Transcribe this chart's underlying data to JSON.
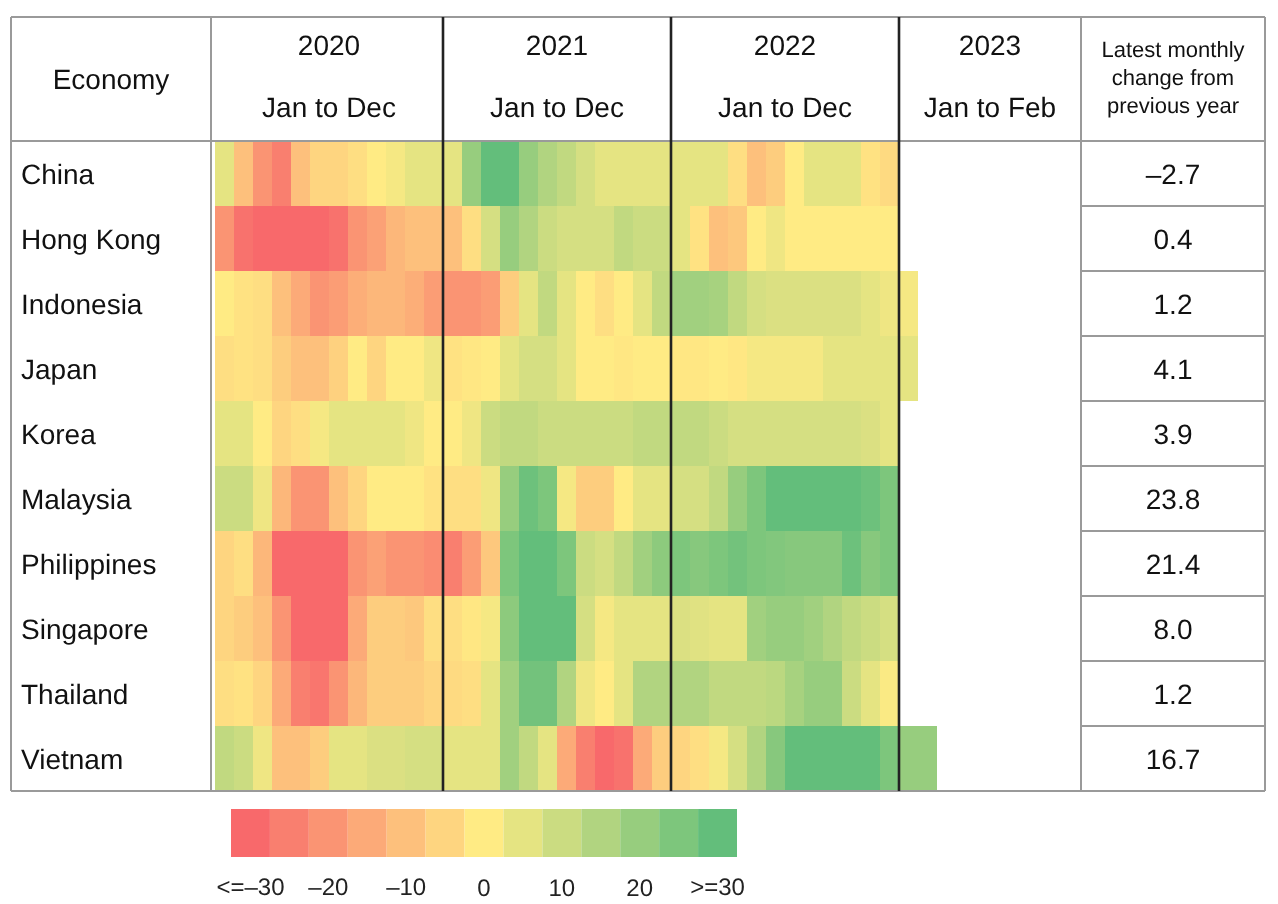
{
  "chart_data": {
    "type": "heatmap",
    "ylabel": "Economy",
    "annotations": [
      "2020",
      "Jan to Dec",
      "2021",
      "Jan to Dec",
      "2022",
      "Jan to Dec",
      "2023",
      "Jan to Feb",
      "Latest monthly change from previous year"
    ],
    "categories": [
      null,
      null,
      null,
      null,
      null,
      null,
      null,
      null,
      null,
      null,
      null,
      null,
      null,
      null,
      null,
      null,
      null,
      null,
      null,
      null,
      null,
      null,
      null,
      null,
      null,
      null,
      null,
      null,
      null,
      null,
      null,
      null,
      null,
      null,
      null,
      null,
      null,
      null
    ],
    "y_categories": [
      "China",
      "Hong Kong",
      "Indonesia",
      "Japan",
      "Korea",
      "Malaysia",
      "Philippines",
      "Singapore",
      "Thailand",
      "Vietnam"
    ],
    "y2_categories": [
      "–2.7",
      "0.4",
      "1.2",
      "4.1",
      "3.9",
      "23.8",
      "21.4",
      "8.0",
      "1.2",
      "16.7"
    ],
    "cells": [
      [
        5,
        -10,
        -20,
        -25,
        -10,
        -5,
        -5,
        -3,
        0,
        2,
        5,
        5,
        5,
        20,
        30,
        30,
        20,
        15,
        12,
        8,
        5,
        5,
        5,
        5,
        5,
        5,
        5,
        -3,
        -10,
        -7,
        0,
        5,
        5,
        5,
        -2,
        -4,
        null,
        null
      ],
      [
        -20,
        -28,
        -30,
        -30,
        -30,
        -30,
        -28,
        -20,
        -17,
        -12,
        -10,
        -10,
        -10,
        -3,
        8,
        20,
        15,
        10,
        8,
        8,
        8,
        12,
        10,
        10,
        5,
        -2,
        -10,
        -8,
        0,
        3,
        0,
        0,
        0,
        0,
        0,
        0,
        null,
        null
      ],
      [
        0,
        -2,
        -3,
        -10,
        -15,
        -20,
        -18,
        -14,
        -12,
        -12,
        -14,
        -18,
        -20,
        -20,
        -18,
        -7,
        5,
        12,
        5,
        0,
        -3,
        0,
        5,
        12,
        18,
        18,
        17,
        12,
        8,
        7,
        7,
        7,
        7,
        7,
        5,
        3,
        2,
        null
      ],
      [
        -3,
        -2,
        -3,
        -7,
        -10,
        -10,
        -6,
        0,
        -5,
        0,
        0,
        3,
        -2,
        -1,
        0,
        5,
        8,
        8,
        5,
        0,
        0,
        -1,
        0,
        0,
        -1,
        -1,
        0,
        -1,
        2,
        2,
        2,
        2,
        5,
        5,
        5,
        5,
        5,
        null
      ],
      [
        5,
        5,
        0,
        -5,
        -3,
        2,
        5,
        5,
        5,
        5,
        3,
        0,
        0,
        3,
        10,
        12,
        12,
        10,
        10,
        10,
        10,
        10,
        12,
        12,
        12,
        12,
        10,
        8,
        8,
        8,
        8,
        8,
        8,
        8,
        7,
        5,
        null,
        null
      ],
      [
        10,
        10,
        3,
        -12,
        -20,
        -20,
        -10,
        -5,
        0,
        0,
        0,
        -2,
        -3,
        -3,
        3,
        20,
        28,
        25,
        2,
        -7,
        -7,
        0,
        5,
        5,
        8,
        8,
        12,
        20,
        25,
        30,
        30,
        30,
        30,
        30,
        28,
        25,
        null,
        null
      ],
      [
        -5,
        -3,
        -12,
        -30,
        -30,
        -30,
        -30,
        -20,
        -17,
        -20,
        -20,
        -22,
        -25,
        -18,
        -8,
        25,
        30,
        30,
        25,
        10,
        8,
        12,
        18,
        22,
        25,
        23,
        25,
        27,
        25,
        24,
        23,
        23,
        23,
        28,
        23,
        25,
        null,
        null
      ],
      [
        -5,
        -7,
        -10,
        -20,
        -30,
        -30,
        -30,
        -15,
        -7,
        -7,
        -8,
        -3,
        -3,
        -1,
        2,
        22,
        30,
        30,
        30,
        8,
        2,
        5,
        5,
        5,
        7,
        6,
        5,
        5,
        18,
        20,
        20,
        18,
        15,
        12,
        10,
        8,
        null,
        null
      ],
      [
        -3,
        -2,
        -5,
        -15,
        -25,
        -27,
        -20,
        -12,
        -7,
        -7,
        -7,
        -5,
        -4,
        -3,
        5,
        18,
        27,
        27,
        15,
        3,
        0,
        5,
        15,
        15,
        15,
        15,
        12,
        12,
        12,
        13,
        17,
        20,
        20,
        10,
        5,
        1,
        null,
        null
      ],
      [
        12,
        10,
        3,
        -10,
        -10,
        -7,
        5,
        5,
        7,
        7,
        8,
        8,
        5,
        5,
        5,
        18,
        12,
        5,
        -15,
        -25,
        -30,
        -28,
        -15,
        -7,
        -5,
        -3,
        2,
        8,
        15,
        23,
        30,
        30,
        30,
        30,
        30,
        25,
        20,
        20
      ]
    ],
    "clim": [
      -32.5,
      32.5
    ],
    "cticks": [
      {
        "value": -30,
        "label": "<=–30"
      },
      {
        "value": -20,
        "label": "–20"
      },
      {
        "value": -10,
        "label": "–10"
      },
      0,
      10,
      20,
      {
        "value": 30,
        "label": ">=30"
      }
    ]
  }
}
